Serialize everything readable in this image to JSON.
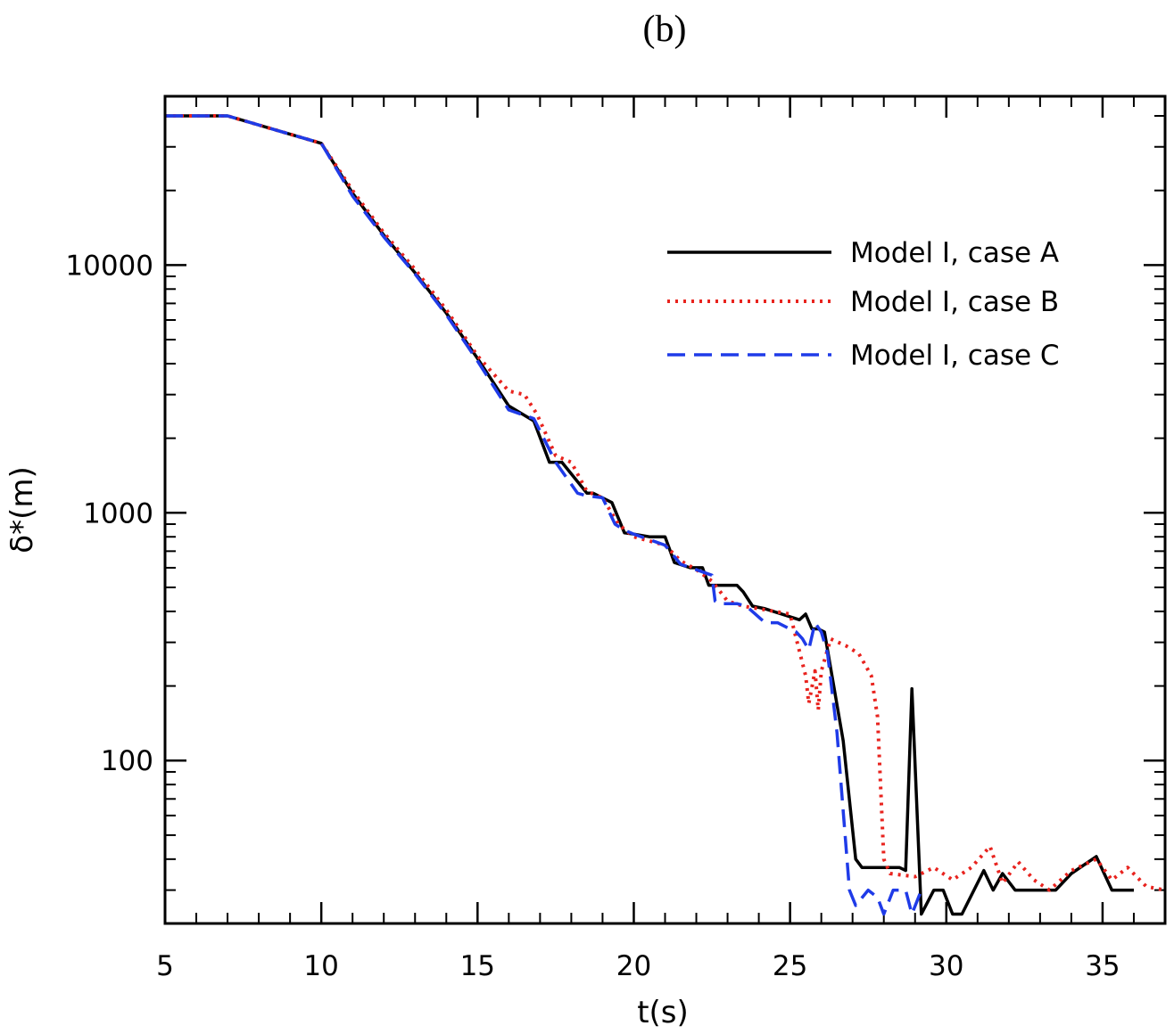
{
  "chart_data": {
    "type": "line",
    "title": "(b)",
    "xlabel": "t(s)",
    "ylabel": "δ*(m)",
    "xlim": [
      5,
      37
    ],
    "ylim": [
      22,
      48000
    ],
    "yscale": "log",
    "grid": false,
    "legend_position": "top-right",
    "x_ticks": [
      5,
      10,
      15,
      20,
      25,
      30,
      35
    ],
    "x_tick_labels": [
      "5",
      "10",
      "15",
      "20",
      "25",
      "30",
      "35"
    ],
    "y_ticks": [
      100,
      1000,
      10000
    ],
    "y_tick_labels": [
      "100",
      "1000",
      "10000"
    ],
    "series": [
      {
        "name": "Model I, case A",
        "color": "#000000",
        "dash": "solid",
        "x": [
          5,
          7,
          10,
          11,
          12,
          13,
          14,
          15,
          16,
          16.8,
          17.3,
          17.7,
          18.5,
          18.7,
          19.3,
          19.7,
          20.0,
          20.5,
          21.0,
          21.3,
          21.8,
          22.2,
          22.4,
          22.7,
          23.3,
          23.5,
          23.8,
          24.2,
          25.3,
          25.5,
          25.7,
          25.9,
          26.1,
          26.7,
          27.1,
          27.3,
          27.6,
          28.5,
          28.7,
          28.9,
          29.2,
          29.6,
          29.9,
          30.2,
          30.5,
          31.2,
          31.5,
          31.8,
          32.2,
          33.5,
          34.0,
          34.8,
          35.3,
          36.0
        ],
        "y": [
          40000,
          40000,
          31000,
          19500,
          13200,
          9300,
          6400,
          4200,
          2700,
          2350,
          1600,
          1600,
          1200,
          1200,
          1100,
          830,
          820,
          800,
          800,
          630,
          600,
          600,
          510,
          510,
          510,
          480,
          420,
          410,
          370,
          390,
          340,
          340,
          330,
          120,
          40,
          37,
          37,
          37,
          36,
          195,
          24,
          30,
          30,
          24,
          24,
          36,
          30,
          35,
          30,
          30,
          35,
          41,
          30,
          30
        ]
      },
      {
        "name": "Model I, case B",
        "color": "#e8231e",
        "dash": "dotted",
        "x": [
          5,
          7,
          10,
          11,
          12,
          13,
          14,
          15,
          16,
          16.5,
          16.9,
          17.5,
          18.0,
          18.5,
          19.0,
          19.5,
          20.0,
          21.0,
          21.5,
          22.0,
          22.5,
          23.0,
          23.5,
          24.0,
          25.0,
          25.5,
          25.6,
          25.8,
          25.9,
          26.0,
          26.3,
          26.8,
          27.2,
          27.6,
          27.8,
          28.0,
          28.2,
          29.0,
          29.6,
          30.2,
          30.8,
          31.4,
          31.8,
          32.3,
          32.8,
          33.3,
          34.0,
          34.8,
          35.3,
          35.8,
          36.4,
          37.0
        ],
        "y": [
          40000,
          40000,
          31000,
          20000,
          13500,
          9600,
          6600,
          4300,
          3100,
          3000,
          2500,
          1700,
          1600,
          1220,
          1150,
          900,
          800,
          740,
          640,
          590,
          530,
          440,
          420,
          410,
          390,
          220,
          170,
          230,
          160,
          230,
          310,
          290,
          270,
          220,
          150,
          40,
          35,
          34,
          37,
          33,
          37,
          45,
          32,
          39,
          33,
          30,
          36,
          40,
          33,
          37,
          31,
          30
        ]
      },
      {
        "name": "Model I, case C",
        "color": "#1f3be8",
        "dash": "dashed",
        "x": [
          5,
          7,
          10,
          11,
          12,
          13,
          14,
          15,
          16,
          16.8,
          17.5,
          18.2,
          18.5,
          19.0,
          19.4,
          19.7,
          20.0,
          21.0,
          21.5,
          22.5,
          22.6,
          22.7,
          23.3,
          23.6,
          24.2,
          24.6,
          25.2,
          25.4,
          25.6,
          25.8,
          26.0,
          26.2,
          26.5,
          26.9,
          27.1,
          27.5,
          27.8,
          28.0,
          28.3,
          28.7,
          28.9,
          29.2
        ],
        "y": [
          40000,
          40000,
          31000,
          19000,
          13000,
          9200,
          6300,
          4100,
          2600,
          2400,
          1600,
          1200,
          1170,
          1150,
          900,
          850,
          820,
          740,
          620,
          560,
          440,
          430,
          430,
          420,
          360,
          360,
          330,
          310,
          280,
          360,
          330,
          270,
          130,
          30,
          26,
          30,
          28,
          24,
          30,
          30,
          24,
          30
        ]
      }
    ]
  }
}
